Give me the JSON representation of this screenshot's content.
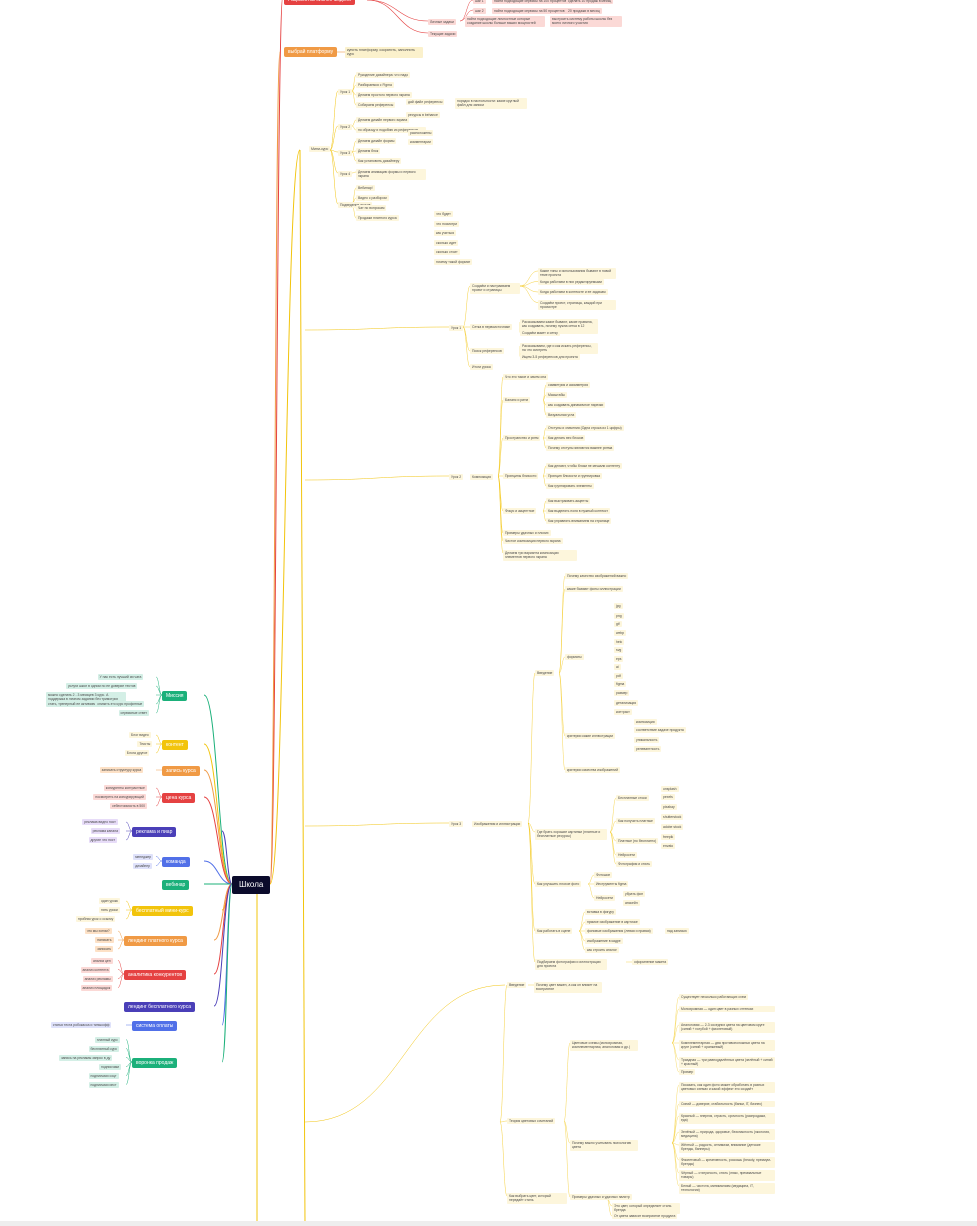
{
  "root": {
    "label": "Школа"
  },
  "left_branches": [
    {
      "label": "Миссия",
      "color": "#1bb07a",
      "children": [
        "У нас есть лучший ии чата",
        "услуги школ в одном по ее доверие тестов",
        "можно сделать 2 - 3 месяцев 3 курс. А поддержка в личном задании без тримотрих стать, тренерный ее активизма у студентов",
        "снизить это курс профитные",
        "сервисные ответ"
      ]
    },
    {
      "label": "контент",
      "color": "#f2c40c",
      "children": [
        "Блог видео",
        "Тексты",
        "Блога другое"
      ]
    },
    {
      "label": "запись курса",
      "color": "#f09a45",
      "children": [
        "записать структуру курса"
      ]
    },
    {
      "label": "цена курса",
      "color": "#e54141",
      "children": [
        "конкуренты контрастные",
        "посмотреть на конкурирующий",
        "себестоимость в 500"
      ]
    },
    {
      "label": "реклама и пиар",
      "color": "#4a3fb8",
      "children": [
        "реклама видео пост",
        "реклама канала",
        "другие что пост"
      ]
    },
    {
      "label": "команда",
      "color": "#5170e8",
      "children": [
        "менеджер",
        "дизайнер"
      ]
    },
    {
      "label": "вебинар",
      "color": "#1bb07a",
      "children": []
    },
    {
      "label": "бесплатный мини-курс",
      "color": "#f2c40c",
      "children": [
        "один урокк",
        "пять уроки",
        "пробник урок о ссылку"
      ]
    },
    {
      "label": "лендинг платного курса",
      "color": "#f09a45",
      "children": [
        "что мы хотим?",
        "написать",
        "записать"
      ]
    },
    {
      "label": "аналитика конкурентов",
      "color": "#e54141",
      "children": [
        "анализ цен",
        "анализ контента",
        "анализ рекламы",
        "анализ площадок"
      ]
    },
    {
      "label": "лендинг бесплатного курса",
      "color": "#4a3fb8",
      "children": []
    },
    {
      "label": "система оплаты",
      "color": "#5170e8",
      "children": [
        "статья теста робокасса и тинькофф"
      ]
    },
    {
      "label": "воронка продаж",
      "color": "#1bb07a",
      "children": [
        "платный курс",
        "бесплатный курс",
        "запись на рекламы запрос в ду",
        "подписчики",
        "подписчики соцт",
        "подписчики инст"
      ]
    }
  ],
  "top_nodes": {
    "red_box": "Разработка бизнес-модели",
    "orange_box": "выбрай платформу",
    "orange_note": "купить платформу, сократить, заполнить курс",
    "top_rows": [
      "шаг 1",
      "шаг 2"
    ],
    "top_texts": [
      "найти подходящие сервисы на 100 процентов",
      "найти подходящие сервисы на 50 процентов"
    ],
    "top_notes": [
      "сделать 10 продаж в месяц",
      "20 продажи в месяц"
    ],
    "personal_tasks": "Личные задачи",
    "personal_text": "найти подходящие личностные которые создание школы больше ваших мощностей",
    "personal_note": "выстроить систему работы школы без моего личного участия",
    "current_tasks": "Текущие задачи"
  },
  "mini_course": {
    "label": "Мини-курс",
    "lessons": [
      {
        "label": "Урок 1",
        "items": [
          "Рукоделие дизайнера: что надо",
          "Разбираемся с Figma",
          "Делаем простого первого экрана",
          "Собираем референсы"
        ],
        "sub": [
          "дай файл референсы",
          "ресурсы в behance",
          "порядок в настольности: какие круглый файл для записи"
        ]
      },
      {
        "label": "Урок 2",
        "items": [
          "Делаем дизайн первого экрана",
          "по образцу и подобию из референсов"
        ]
      },
      {
        "label": "Урок 3",
        "items": [
          "Делаем дизайн формы",
          "Делаем блок",
          "Как установить дизайнеру"
        ],
        "sub": [
          "расположены",
          "комментарии"
        ]
      },
      {
        "label": "Урок 4",
        "items": [
          "Делаем анимацию формы и первого экрана"
        ]
      },
      {
        "label": "Подведение итогов",
        "items": [
          "Вебинар!",
          "Видео с разбором",
          "Чат по вопросам",
          "Продажи платного курса"
        ],
        "sub": [
          "что будет",
          "что посмотри",
          "как учиться",
          "сколько идет",
          "сколько стоит",
          "почему такой формат"
        ]
      }
    ]
  },
  "paid_course": {
    "lesson1": {
      "label": "Урок 1",
      "groups": [
        {
          "label": "Создаём и настраиваем проект и страницы",
          "items": [
            "Какие типы и использования бывают в новой теме проекта",
            "Когда работаем в них редактируемыми",
            "Когда работаем в контексте и ее задачам",
            "Создаём проект, страницы, каждой при просмотре"
          ]
        },
        {
          "label": "Сетка в первоисточнике",
          "items": [
            "Рассказываем какие бывают, какие правила, как создавать, почему нужна сетка в 12 колонок",
            "Создаём макет и сетку"
          ]
        },
        {
          "label": "Поиск референсов",
          "items": [
            "Рассказываем, где и как искать референсы, на что смотреть",
            "Ищем 3-5 референсов для проекта"
          ]
        },
        {
          "label": "Итоги урока",
          "items": []
        }
      ]
    },
    "lesson2": {
      "label": "Урок 2",
      "sub": "Композиция",
      "groups": [
        {
          "label": "Что это такое и зачем она",
          "items": []
        },
        {
          "label": "Баланс и ритм",
          "items": [
            "симметрия и асимметрия",
            "Масштабы",
            "как создавать динамичное нарезки",
            "Визуальная угла"
          ]
        },
        {
          "label": "Пространство и ритм",
          "items": [
            "Отступы и значения (Одна строка из 1 цифры)",
            "Как делать вес блоков",
            "Почему отступы являются важнее ритма"
          ]
        },
        {
          "label": "Принципы близости",
          "items": [
            "Как делают, чтобы блоки не мешали контенту",
            "Принцип близости и группировка",
            "Как группировать элементы"
          ]
        },
        {
          "label": "Фокус и акцентное",
          "items": [
            "Как выстраивать акценты",
            "Как выделять поля в нужный контекст",
            "Как управлять вниманием на странице"
          ]
        },
        {
          "label": "Примеры удачных и плохих",
          "items": []
        },
        {
          "label": "Чистое композиция первого экрана",
          "items": []
        },
        {
          "label": "Делаем три варианта композиции элементов первого экрана",
          "items": []
        }
      ]
    },
    "lesson3": {
      "label": "Урок 3",
      "sub": "Изображения и иллюстрации",
      "groups": [
        {
          "label": "Введение",
          "items": [
            "Почему качество изображений важно",
            "какие бывают фоны иллюстрации",
            "форматы",
            "растр",
            "вектор",
            "критерии какие иллюстрации",
            "критерии качества изображений"
          ],
          "leaves": [
            "jpg",
            "png",
            "gif",
            "webp",
            "heic",
            "svg",
            "eps",
            "ai",
            "pdf",
            "figma",
            "размер",
            "детализация",
            "контраст",
            "композиция",
            "соответствие задаче продукта",
            "уникальность",
            "релевантность"
          ]
        },
        {
          "label": "Где брать хорошие картинки (платные и бесплатные ресурсы)",
          "items": [
            "Бесплатные стоки",
            "Как получить платные",
            "Платные (но бесплатно)",
            "Нейросети",
            "Фотография и стиль"
          ],
          "leaves": [
            "unsplash",
            "pexels",
            "pixabay",
            "shutterstock",
            "adobe stock",
            "freepik",
            "envato"
          ]
        },
        {
          "label": "Как улучшить плохое фото",
          "items": [
            "Фотошоп",
            "Инструменты figma",
            "Нейросети"
          ],
          "leaves": [
            "убрать фон",
            "апскейл"
          ]
        },
        {
          "label": "Как работать в сцене",
          "items": [
            "вставка в фигуру",
            "прямое изображение в карточке",
            "фоновые изображения (левая и правая)",
            "изображение в кадре",
            "как строить аналог"
          ],
          "leaves": [
            "над записью"
          ]
        },
        {
          "label": "Подбираем фотографии и иллюстрации для проекта",
          "items": [
            "оформление макета"
          ]
        }
      ]
    },
    "lesson4": {
      "label": "Урок 4",
      "groups": [
        {
          "label": "Введение",
          "items": [
            "Почему цвет важен, а как он влияет на восприятие"
          ]
        },
        {
          "label": "Теория цветовых сочетаний",
          "items": [
            "Цветовые схемы (монохромная, комплементарная, аналоговая и др.)",
            "Почему важно учитывать психологию цвета",
            "Примеры удачных и удачных палитр"
          ],
          "leaves": [
            "Существует несколько работающих схем",
            "Монохромная — один цвет в разных оттенках",
            "Аналоговая — 2-3 соседних цвета на цветовом круге (синий + голубой + фиолетовый)",
            "Комплементарная — два противоположных цвета на круге (синий + оранжевый)",
            "Триадная — три равноудалённых цвета (зелёный + синий + красный)",
            "Пример",
            "Показать, как один фото может обработать в разных цветовых схемах и какой эффект это создаёт",
            "Синий — доверие, стабильность (банки, IT, бизнес)",
            "Красный — энергия, страсть, срочность (распродажи, еда)",
            "Зелёный — природа, здоровье, безопасность (экология, медицина)",
            "Жёлтый — радость, оптимизм, внимание (детские бренды, баннеры)",
            "Фиолетовый — креативность, роскошь (beauty, премиум-бренды)",
            "Чёрный — статусность, стиль (люкс, премиальные товары)",
            "Белый — чистота, минимализм (медицина, IT, технологии)"
          ]
        },
        {
          "label": "Как выбрать цвет, который передаёт стиль",
          "items": [
            "Это цвет, который определяет стиль бренда",
            "От цвета зависит восприятие продукта"
          ]
        }
      ]
    }
  }
}
